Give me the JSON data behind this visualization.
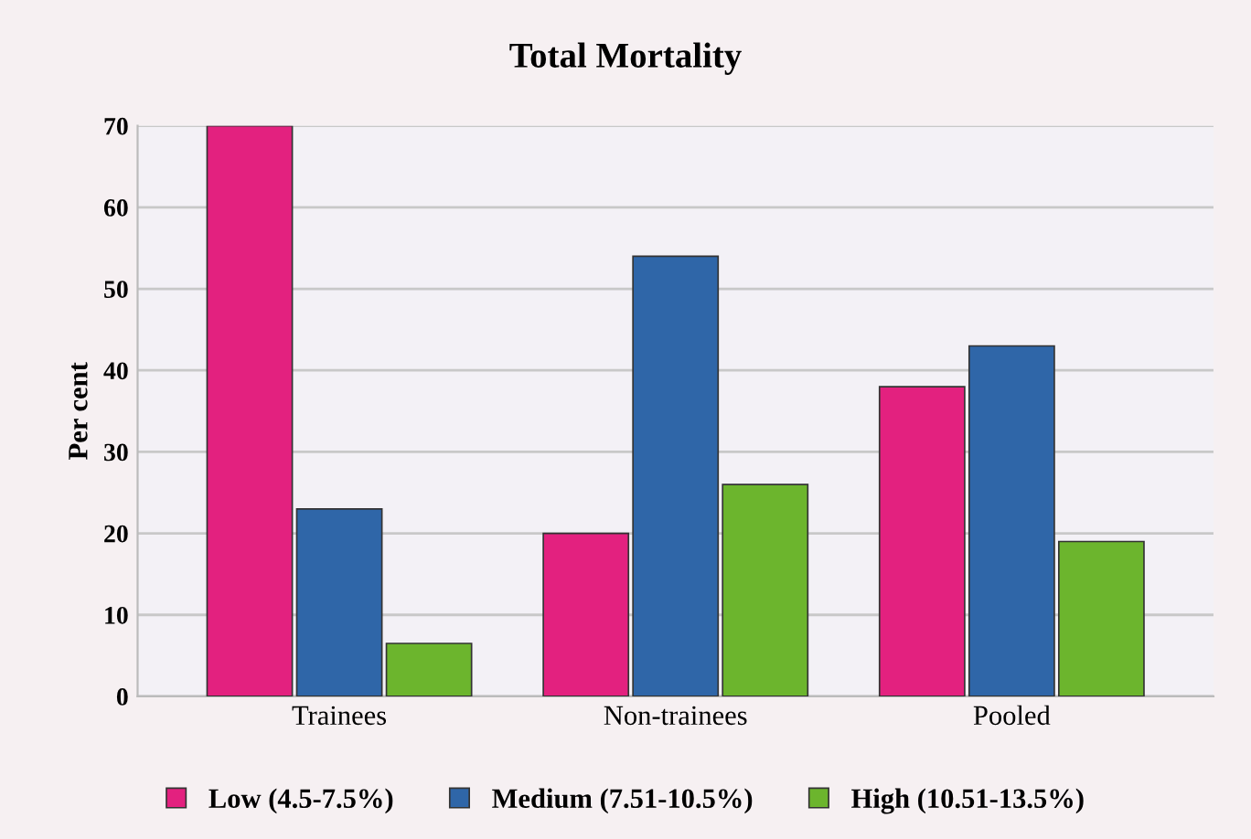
{
  "chart_data": {
    "type": "bar",
    "title": "Total Mortality",
    "ylabel": "Per cent",
    "categories": [
      "Trainees",
      "Non-trainees",
      "Pooled"
    ],
    "series": [
      {
        "name": "Low (4.5-7.5%)",
        "color": "#e3217f",
        "values": [
          70,
          20,
          38
        ]
      },
      {
        "name": "Medium (7.51-10.5%)",
        "color": "#2f66a8",
        "values": [
          23,
          54,
          43
        ]
      },
      {
        "name": "High (10.51-13.5%)",
        "color": "#6cb52d",
        "values": [
          6.5,
          26,
          19
        ]
      }
    ],
    "ylim": [
      0,
      70
    ],
    "yticks": [
      0,
      10,
      20,
      30,
      40,
      50,
      60,
      70
    ],
    "grid": "y",
    "legend": "bottom"
  }
}
